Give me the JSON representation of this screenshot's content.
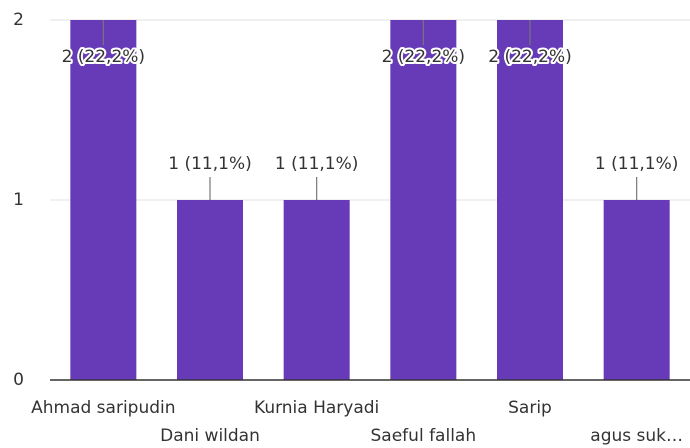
{
  "chart_data": {
    "type": "bar",
    "categories": [
      "Ahmad saripudin",
      "Dani wildan",
      "Kurnia Haryadi",
      "Saeful fallah",
      "Sarip",
      "agus suk…"
    ],
    "values": [
      2,
      1,
      1,
      2,
      2,
      1
    ],
    "value_labels": [
      "2 (22,2%)",
      "1 (11,1%)",
      "1 (11,1%)",
      "2 (22,2%)",
      "2 (22,2%)",
      "1 (11,1%)"
    ],
    "color": "#673ab7",
    "ylim": [
      0,
      2
    ],
    "yticks": [
      0,
      1,
      2
    ],
    "grid": true
  }
}
